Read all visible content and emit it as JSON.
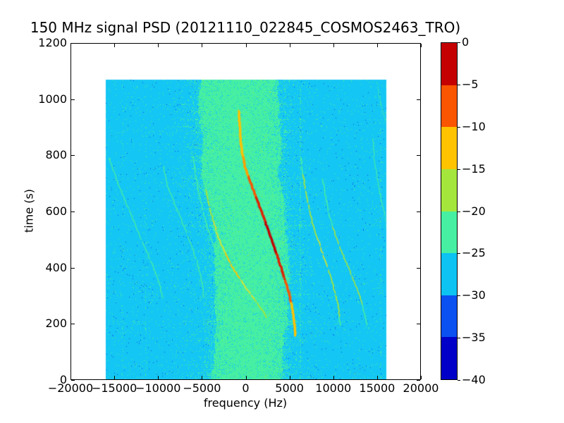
{
  "chart_data": {
    "type": "heatmap",
    "title": "150 MHz signal PSD (20121110_022845_COSMOS2463_TRO)",
    "xlabel": "frequency (Hz)",
    "ylabel": "time (s)",
    "xlim": [
      -20000,
      20000
    ],
    "ylim": [
      0,
      1200
    ],
    "grid": false,
    "x_ticks": [
      -20000,
      -15000,
      -10000,
      -5000,
      0,
      5000,
      10000,
      15000,
      20000
    ],
    "x_ticklabels": [
      "−20000",
      "−15000",
      "−10000",
      "−5000",
      "0",
      "5000",
      "10000",
      "15000",
      "20000"
    ],
    "y_ticks": [
      0,
      200,
      400,
      600,
      800,
      1000,
      1200
    ],
    "y_ticklabels": [
      "0",
      "200",
      "400",
      "600",
      "800",
      "1000",
      "1200"
    ],
    "data_extent": {
      "freq_hz": [
        -16000,
        16000
      ],
      "time_s": [
        0,
        1070
      ]
    },
    "background_psd_db": -27,
    "noise_band": {
      "psd_db": -22,
      "left_edge_t_f": [
        [
          0,
          -3900
        ],
        [
          150,
          -3800
        ],
        [
          300,
          -3550
        ],
        [
          450,
          -3650
        ],
        [
          600,
          -4250
        ],
        [
          750,
          -4850
        ],
        [
          900,
          -5300
        ],
        [
          1070,
          -5500
        ]
      ],
      "right_edge_t_f": [
        [
          0,
          4200
        ],
        [
          150,
          4400
        ],
        [
          300,
          4650
        ],
        [
          450,
          4550
        ],
        [
          600,
          4150
        ],
        [
          750,
          3850
        ],
        [
          900,
          3500
        ],
        [
          1070,
          3300
        ]
      ]
    },
    "vertical_interference": [
      {
        "freq_hz": -14100,
        "strength": 0.1
      },
      {
        "freq_hz": -11400,
        "strength": 0.16
      },
      {
        "freq_hz": -3900,
        "strength": 0.12
      },
      {
        "freq_hz": 4400,
        "strength": 0.22
      },
      {
        "freq_hz": 6200,
        "strength": 0.5
      },
      {
        "freq_hz": 15400,
        "strength": 0.28
      }
    ],
    "doppler_curves": [
      {
        "name": "left-outer",
        "width": 1.5,
        "alpha": 0.8,
        "color": "#46efa2",
        "points_f_t": [
          [
            -15600,
            790
          ],
          [
            -14700,
            710
          ],
          [
            -13300,
            605
          ],
          [
            -11900,
            500
          ],
          [
            -10600,
            405
          ],
          [
            -9800,
            345
          ],
          [
            -9550,
            295
          ]
        ]
      },
      {
        "name": "left-inner",
        "width": 1.5,
        "alpha": 0.8,
        "color": "#46efa2",
        "points_f_t": [
          [
            -9400,
            760
          ],
          [
            -8900,
            690
          ],
          [
            -7600,
            590
          ],
          [
            -6500,
            505
          ],
          [
            -5600,
            425
          ],
          [
            -5000,
            350
          ],
          [
            -4700,
            285
          ]
        ]
      },
      {
        "name": "mid-left-green",
        "width": 1.6,
        "alpha": 0.85,
        "color": "#46efa2",
        "points_f_t": [
          [
            -6000,
            795
          ],
          [
            -5400,
            670
          ],
          [
            -4500,
            555
          ],
          [
            -3400,
            455
          ],
          [
            -2100,
            360
          ],
          [
            -800,
            275
          ],
          [
            200,
            210
          ],
          [
            500,
            165
          ]
        ]
      },
      {
        "name": "mid-left-yellow",
        "width": 1.9,
        "alpha": 0.9,
        "points_f_t": [
          [
            -4900,
            735
          ],
          [
            -4200,
            620
          ],
          [
            -3100,
            505
          ],
          [
            -1600,
            405
          ],
          [
            200,
            320
          ],
          [
            1900,
            250
          ],
          [
            3000,
            190
          ]
        ],
        "colors": [
          "#46efa2",
          "#a4e63c",
          "#d6e332",
          "#ffc300",
          "#d6e332",
          "#a4e63c",
          "#46efa2"
        ]
      },
      {
        "name": "main",
        "width": 2.3,
        "alpha": 1,
        "glow": true,
        "points_f_t": [
          [
            -800,
            958
          ],
          [
            -500,
            830
          ],
          [
            -100,
            760
          ],
          [
            700,
            690
          ],
          [
            1600,
            618
          ],
          [
            2900,
            505
          ],
          [
            4100,
            395
          ],
          [
            4900,
            315
          ],
          [
            5400,
            240
          ],
          [
            5600,
            185
          ],
          [
            5650,
            158
          ]
        ],
        "colors": [
          "#ffc300",
          "#ffc300",
          "#ffa000",
          "#fa5500",
          "#e02000",
          "#c40000",
          "#e02000",
          "#fa5500",
          "#ffc300",
          "#ffc300",
          "#ffc300"
        ]
      },
      {
        "name": "right-1",
        "width": 1.8,
        "alpha": 0.9,
        "points_f_t": [
          [
            6300,
            790
          ],
          [
            6800,
            680
          ],
          [
            7600,
            560
          ],
          [
            8800,
            450
          ],
          [
            9900,
            350
          ],
          [
            10600,
            260
          ],
          [
            10800,
            195
          ]
        ],
        "colors": [
          "#46efa2",
          "#a4e63c",
          "#a4e63c",
          "#c9e638",
          "#a4e63c",
          "#a4e63c",
          "#46efa2"
        ]
      },
      {
        "name": "right-2",
        "width": 1.6,
        "alpha": 0.85,
        "points_f_t": [
          [
            8800,
            715
          ],
          [
            9400,
            600
          ],
          [
            10500,
            490
          ],
          [
            11800,
            395
          ],
          [
            12900,
            310
          ],
          [
            13600,
            235
          ],
          [
            13850,
            195
          ]
        ],
        "colors": [
          "#46efa2",
          "#46efa2",
          "#a4e63c",
          "#a4e63c",
          "#a4e63c",
          "#46efa2",
          "#46efa2"
        ]
      },
      {
        "name": "right-edge",
        "width": 1.4,
        "alpha": 0.7,
        "color": "#46efa2",
        "points_f_t": [
          [
            14500,
            860
          ],
          [
            14700,
            780
          ],
          [
            15300,
            670
          ],
          [
            15900,
            585
          ],
          [
            16250,
            505
          ]
        ]
      },
      {
        "name": "top-right-edge",
        "width": 1.2,
        "alpha": 0.55,
        "color": "#46efa2",
        "points_f_t": [
          [
            14900,
            1068
          ],
          [
            15300,
            1000
          ],
          [
            15900,
            930
          ],
          [
            16200,
            880
          ]
        ]
      }
    ],
    "colorbar": {
      "ticks": [
        0,
        -5,
        -10,
        -15,
        -20,
        -25,
        -30,
        -35,
        -40
      ],
      "ticklabels": [
        "0",
        "−5",
        "−10",
        "−15",
        "−20",
        "−25",
        "−30",
        "−35",
        "−40"
      ],
      "segment_colors_top_to_bottom": [
        "#c40000",
        "#fa5500",
        "#ffc300",
        "#a4e63c",
        "#46efa2",
        "#0cc3f2",
        "#0b50f0",
        "#0000c8"
      ]
    },
    "palette": {
      "plot_background": "#ffffff",
      "noise_floor_cyan": "#14c6f3",
      "band_green": "#46efa2",
      "fleck_blue": "#0b50f0",
      "fleck_bright_green": "#a4e63c"
    },
    "texture": {
      "seed": 7,
      "row_streak_fraction": 0.15,
      "edge_falloff_hz": 1100,
      "global_fleck_p": 0.013,
      "blue_fleck_p": 0.005
    }
  }
}
